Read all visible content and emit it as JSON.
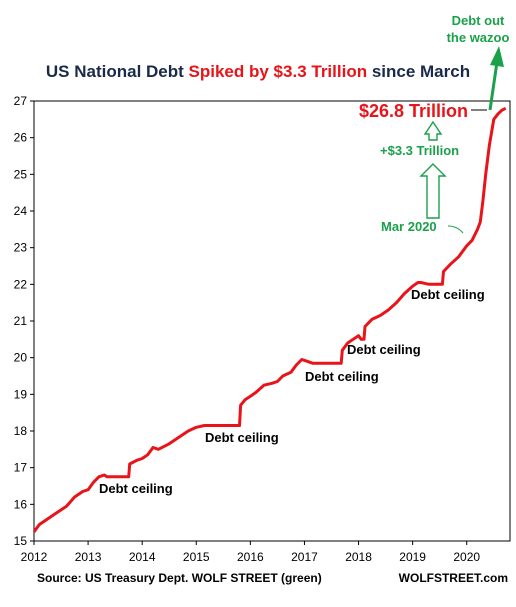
{
  "chart_data": {
    "type": "line",
    "title_parts": [
      {
        "text": "US National Debt ",
        "color": "#1a2a4a"
      },
      {
        "text": "Spiked by $3.3 Trillion",
        "color": "#e8141a"
      },
      {
        "text": " since March",
        "color": "#1a2a4a"
      }
    ],
    "ylim": [
      15,
      27
    ],
    "xlim": [
      2012,
      2020.8
    ],
    "y_ticks": [
      "15",
      "16",
      "17",
      "18",
      "19",
      "20",
      "21",
      "22",
      "23",
      "24",
      "25",
      "26",
      "27"
    ],
    "x_ticks": [
      "2012",
      "2013",
      "2014",
      "2015",
      "2016",
      "2017",
      "2018",
      "2019",
      "2020"
    ],
    "series": [
      {
        "color": "#e8141a",
        "points": [
          [
            2012.0,
            15.25
          ],
          [
            2012.1,
            15.45
          ],
          [
            2012.25,
            15.6
          ],
          [
            2012.4,
            15.75
          ],
          [
            2012.6,
            15.95
          ],
          [
            2012.75,
            16.2
          ],
          [
            2012.9,
            16.35
          ],
          [
            2013.0,
            16.4
          ],
          [
            2013.1,
            16.6
          ],
          [
            2013.2,
            16.75
          ],
          [
            2013.3,
            16.8
          ],
          [
            2013.35,
            16.75
          ],
          [
            2013.5,
            16.75
          ],
          [
            2013.75,
            16.75
          ],
          [
            2013.77,
            17.1
          ],
          [
            2013.9,
            17.2
          ],
          [
            2014.0,
            17.25
          ],
          [
            2014.1,
            17.35
          ],
          [
            2014.2,
            17.55
          ],
          [
            2014.3,
            17.5
          ],
          [
            2014.5,
            17.65
          ],
          [
            2014.7,
            17.85
          ],
          [
            2014.85,
            18.0
          ],
          [
            2015.0,
            18.1
          ],
          [
            2015.15,
            18.15
          ],
          [
            2015.5,
            18.15
          ],
          [
            2015.8,
            18.15
          ],
          [
            2015.82,
            18.7
          ],
          [
            2015.9,
            18.85
          ],
          [
            2016.0,
            18.95
          ],
          [
            2016.1,
            19.05
          ],
          [
            2016.25,
            19.25
          ],
          [
            2016.4,
            19.3
          ],
          [
            2016.5,
            19.35
          ],
          [
            2016.6,
            19.5
          ],
          [
            2016.75,
            19.6
          ],
          [
            2016.85,
            19.8
          ],
          [
            2016.95,
            19.95
          ],
          [
            2017.05,
            19.9
          ],
          [
            2017.15,
            19.85
          ],
          [
            2017.5,
            19.85
          ],
          [
            2017.68,
            19.85
          ],
          [
            2017.7,
            20.2
          ],
          [
            2017.8,
            20.4
          ],
          [
            2017.9,
            20.5
          ],
          [
            2018.0,
            20.6
          ],
          [
            2018.05,
            20.5
          ],
          [
            2018.1,
            20.5
          ],
          [
            2018.12,
            20.85
          ],
          [
            2018.25,
            21.05
          ],
          [
            2018.4,
            21.15
          ],
          [
            2018.55,
            21.3
          ],
          [
            2018.7,
            21.5
          ],
          [
            2018.85,
            21.75
          ],
          [
            2019.0,
            21.95
          ],
          [
            2019.1,
            22.05
          ],
          [
            2019.15,
            22.05
          ],
          [
            2019.3,
            22.0
          ],
          [
            2019.5,
            22.0
          ],
          [
            2019.55,
            22.0
          ],
          [
            2019.57,
            22.35
          ],
          [
            2019.7,
            22.55
          ],
          [
            2019.85,
            22.75
          ],
          [
            2020.0,
            23.05
          ],
          [
            2020.1,
            23.2
          ],
          [
            2020.2,
            23.5
          ],
          [
            2020.25,
            23.7
          ],
          [
            2020.3,
            24.3
          ],
          [
            2020.35,
            25.0
          ],
          [
            2020.42,
            25.8
          ],
          [
            2020.5,
            26.5
          ],
          [
            2020.58,
            26.65
          ],
          [
            2020.65,
            26.75
          ],
          [
            2020.72,
            26.8
          ]
        ]
      }
    ],
    "annotations": {
      "current_value": "$26.8 Trillion",
      "increase": "+$3.3 Trillion",
      "march_label": "Mar 2020",
      "wazoo_line1": "Debt out",
      "wazoo_line2": "the wazoo",
      "debt_ceiling": "Debt ceiling"
    },
    "source": "Source: US Treasury Dept. WOLF STREET (green)",
    "brand": "WOLFSTREET.com",
    "colors": {
      "line": "#e8141a",
      "annotation": "#1aa14a",
      "title": "#1a2a4a",
      "axis": "#000000"
    }
  }
}
